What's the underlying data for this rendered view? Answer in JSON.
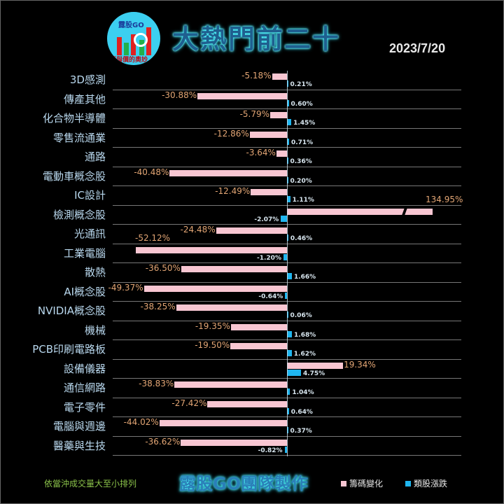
{
  "header": {
    "logo_text": "露股GO",
    "logo_caption": "籌與價的奧妙",
    "title": "大熱門前二十",
    "date": "2023/7/20"
  },
  "footer": {
    "note": "依當沖成交量大至小排列",
    "brand": "露股GO團隊製作",
    "legend": [
      {
        "label": "籌碼變化",
        "color": "#f8c6d2"
      },
      {
        "label": "類股漲跌",
        "color": "#1fb6f0"
      }
    ]
  },
  "colors": {
    "background": "#000000",
    "chip_change": "#f8c6d2",
    "sector_change": "#1fb6f0",
    "chip_label": "#e2a574",
    "category_label": "#b9d8ee"
  },
  "chart_data": {
    "type": "bar",
    "orientation": "horizontal",
    "title": "大熱門前二十",
    "subtitle": "2023/7/20",
    "categories": [
      "3D感測",
      "傳產其他",
      "化合物半導體",
      "零售流通業",
      "通路",
      "電動車概念股",
      "IC設計",
      "檢測概念股",
      "光通訊",
      "工業電腦",
      "散熱",
      "AI概念股",
      "NVIDIA概念股",
      "機械",
      "PCB印刷電路板",
      "設備儀器",
      "通信網路",
      "電子零件",
      "電腦與週邊",
      "醫藥與生技"
    ],
    "series": [
      {
        "name": "籌碼變化",
        "unit": "%",
        "values": [
          -5.18,
          -30.88,
          -5.79,
          -12.86,
          -3.64,
          -40.48,
          -12.49,
          134.95,
          -24.48,
          -52.12,
          -36.5,
          -49.37,
          -38.25,
          -19.35,
          -19.5,
          19.34,
          -38.83,
          -27.42,
          -44.02,
          -36.62
        ],
        "labels": [
          "-5.18%",
          "-30.88%",
          "-5.79%",
          "-12.86%",
          "-3.64%",
          "-40.48%",
          "-12.49%",
          "134.95%",
          "-24.48%",
          "-52.12%",
          "-36.50%",
          "-49.37%",
          "-38.25%",
          "-19.35%",
          "-19.50%",
          "19.34%",
          "-38.83%",
          "-27.42%",
          "-44.02%",
          "-36.62%"
        ]
      },
      {
        "name": "類股漲跌",
        "unit": "%",
        "values": [
          0.21,
          0.6,
          1.45,
          0.71,
          0.36,
          0.2,
          1.11,
          -2.07,
          0.46,
          -1.2,
          1.66,
          -0.64,
          0.06,
          1.68,
          1.62,
          4.75,
          1.04,
          0.64,
          0.37,
          -0.82
        ],
        "labels": [
          "0.21%",
          "0.60%",
          "1.45%",
          "0.71%",
          "0.36%",
          "0.20%",
          "1.11%",
          "-2.07%",
          "0.46%",
          "-1.20%",
          "1.66%",
          "-0.64%",
          "0.06%",
          "1.68%",
          "1.62%",
          "4.75%",
          "1.04%",
          "0.64%",
          "0.37%",
          "-0.82%"
        ]
      }
    ],
    "notes": "134.95% bar is drawn with an axis break",
    "grid": true,
    "legend_position": "bottom"
  }
}
